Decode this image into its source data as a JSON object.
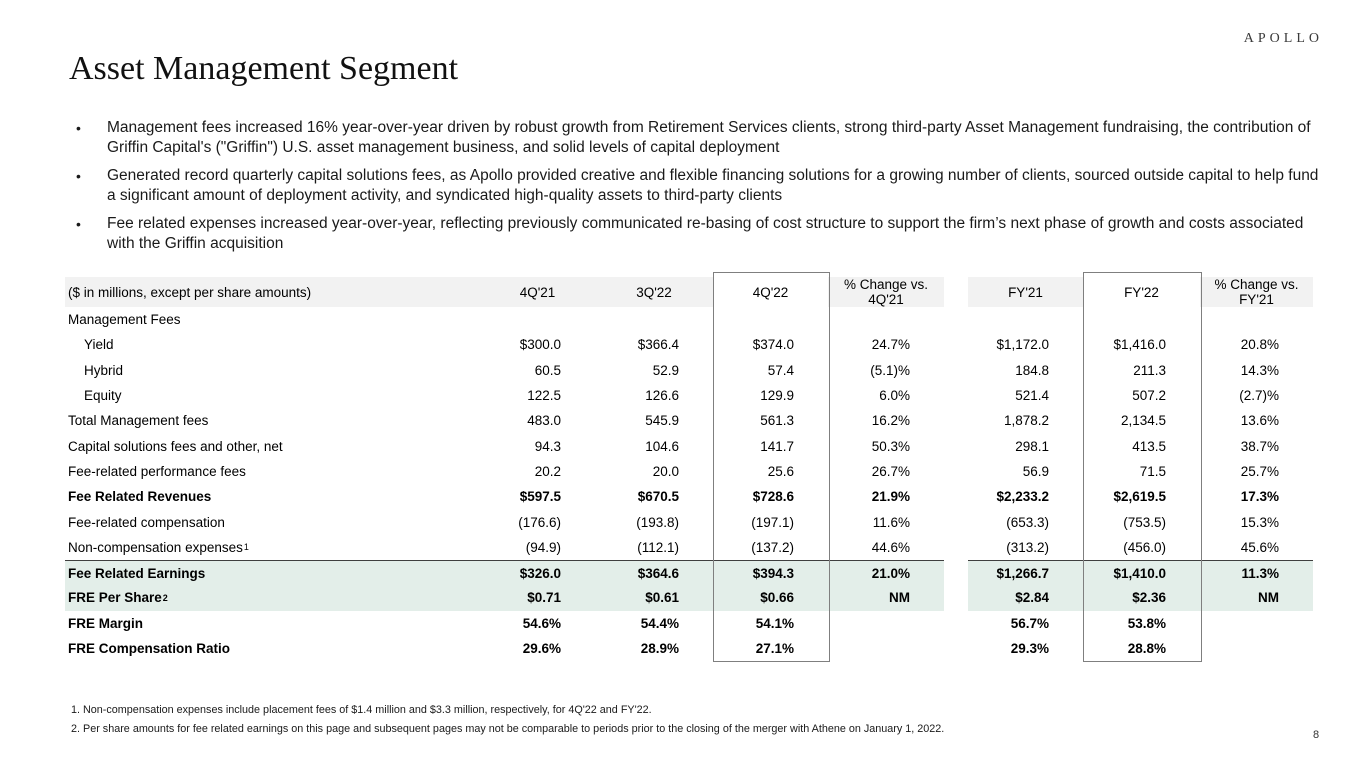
{
  "logo": "APOLLO",
  "title": "Asset Management Segment",
  "bullets": [
    "Management fees increased 16% year-over-year driven by robust growth from Retirement Services clients, strong third-party Asset Management fundraising, the contribution of Griffin Capital's (\"Griffin\") U.S. asset management business, and solid levels of capital deployment",
    "Generated record quarterly capital solutions fees, as Apollo provided creative and flexible financing solutions for a growing number of clients, sourced outside capital to help fund a significant amount of deployment activity, and syndicated high-quality assets to third-party clients",
    "Fee related expenses increased year-over-year, reflecting previously communicated re-basing of cost structure to support the firm’s next phase of growth and costs associated with the Griffin acquisition"
  ],
  "bullet_glyph": "•",
  "table": {
    "header": {
      "label": "($ in millions, except per share amounts)",
      "columns": [
        "4Q'21",
        "3Q'22",
        "4Q'22",
        "% Change vs. 4Q'21",
        "FY'21",
        "FY'22",
        "% Change vs. FY'21"
      ]
    },
    "highlight_color": "#e3eee9",
    "header_color": "#f2f2f2",
    "box_border_color": "#7f7f7f",
    "rows": [
      {
        "label": "Management Fees",
        "values": [
          "",
          "",
          "",
          "",
          "",
          "",
          ""
        ]
      },
      {
        "label": "Yield",
        "indent": true,
        "values": [
          "$300.0",
          "$366.4",
          "$374.0",
          "24.7%",
          "$1,172.0",
          "$1,416.0",
          "20.8%"
        ]
      },
      {
        "label": "Hybrid",
        "indent": true,
        "values": [
          "60.5",
          "52.9",
          "57.4",
          "(5.1)%",
          "184.8",
          "211.3",
          "14.3%"
        ]
      },
      {
        "label": "Equity",
        "indent": true,
        "values": [
          "122.5",
          "126.6",
          "129.9",
          "6.0%",
          "521.4",
          "507.2",
          "(2.7)%"
        ]
      },
      {
        "label": "Total Management fees",
        "values": [
          "483.0",
          "545.9",
          "561.3",
          "16.2%",
          "1,878.2",
          "2,134.5",
          "13.6%"
        ]
      },
      {
        "label": "Capital solutions fees and other, net",
        "values": [
          "94.3",
          "104.6",
          "141.7",
          "50.3%",
          "298.1",
          "413.5",
          "38.7%"
        ]
      },
      {
        "label": "Fee-related performance fees",
        "values": [
          "20.2",
          "20.0",
          "25.6",
          "26.7%",
          "56.9",
          "71.5",
          "25.7%"
        ]
      },
      {
        "label": "Fee Related Revenues",
        "bold": true,
        "values": [
          "$597.5",
          "$670.5",
          "$728.6",
          "21.9%",
          "$2,233.2",
          "$2,619.5",
          "17.3%"
        ]
      },
      {
        "label": "Fee-related compensation",
        "values": [
          "(176.6)",
          "(193.8)",
          "(197.1)",
          "11.6%",
          "(653.3)",
          "(753.5)",
          "15.3%"
        ]
      },
      {
        "label": "Non-compensation expenses",
        "sup": "1",
        "values": [
          "(94.9)",
          "(112.1)",
          "(137.2)",
          "44.6%",
          "(313.2)",
          "(456.0)",
          "45.6%"
        ]
      },
      {
        "label": "Fee Related Earnings",
        "bold": true,
        "highlight": true,
        "topline": true,
        "values": [
          "$326.0",
          "$364.6",
          "$394.3",
          "21.0%",
          "$1,266.7",
          "$1,410.0",
          "11.3%"
        ]
      },
      {
        "label": "FRE Per Share",
        "sup": "2",
        "bold": true,
        "highlight": true,
        "values": [
          "$0.71",
          "$0.61",
          "$0.66",
          "NM",
          "$2.84",
          "$2.36",
          "NM"
        ]
      },
      {
        "label": "FRE Margin",
        "bold": true,
        "values": [
          "54.6%",
          "54.4%",
          "54.1%",
          "",
          "56.7%",
          "53.8%",
          ""
        ]
      },
      {
        "label": "FRE Compensation Ratio",
        "bold": true,
        "values": [
          "29.6%",
          "28.9%",
          "27.1%",
          "",
          "29.3%",
          "28.8%",
          ""
        ]
      }
    ]
  },
  "footnotes": [
    "1. Non-compensation expenses include placement fees of $1.4 million and $3.3 million, respectively, for 4Q'22 and FY'22.",
    "2. Per share amounts for fee related earnings on this page and subsequent pages may not be comparable to periods prior to the closing of the merger with Athene on January 1, 2022."
  ],
  "page_number": "8"
}
